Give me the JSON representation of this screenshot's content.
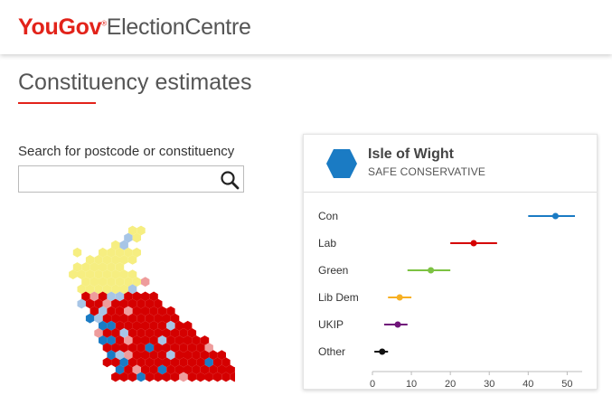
{
  "header": {
    "logo_brand": "YouGov",
    "logo_reg": "®",
    "logo_suffix": "ElectionCentre"
  },
  "page": {
    "title": "Constituency estimates"
  },
  "search": {
    "label": "Search for postcode or constituency",
    "value": "",
    "placeholder": ""
  },
  "colors": {
    "brand_red": "#e2231a",
    "con": "#1a7bc4",
    "lab": "#d50000",
    "green": "#7cc242",
    "libdem": "#f7b023",
    "ukip": "#70147a",
    "other": "#111111",
    "map_yellow": "#f6ee81",
    "map_light_blue": "#a7c5e6",
    "map_pink": "#ee9c9c",
    "map_grey": "#cccccc"
  },
  "constituency": {
    "name": "Isle of Wight",
    "status": "SAFE CONSERVATIVE",
    "party_color": "#1a7bc4"
  },
  "chart_data": {
    "type": "scatter",
    "title": "",
    "xlabel": "",
    "ylabel": "",
    "xlim": [
      0,
      52
    ],
    "xticks": [
      0,
      10,
      20,
      30,
      40,
      50
    ],
    "categories": [
      "Con",
      "Lab",
      "Green",
      "Lib Dem",
      "UKIP",
      "Other"
    ],
    "series": [
      {
        "name": "Con",
        "estimate": 47,
        "low": 40,
        "high": 52,
        "color": "#1a7bc4"
      },
      {
        "name": "Lab",
        "estimate": 26,
        "low": 20,
        "high": 32,
        "color": "#d50000"
      },
      {
        "name": "Green",
        "estimate": 15,
        "low": 9,
        "high": 20,
        "color": "#7cc242"
      },
      {
        "name": "Lib Dem",
        "estimate": 7,
        "low": 4,
        "high": 10,
        "color": "#f7b023"
      },
      {
        "name": "UKIP",
        "estimate": 6.5,
        "low": 3,
        "high": 9,
        "color": "#70147a"
      },
      {
        "name": "Other",
        "estimate": 2.5,
        "low": 0.5,
        "high": 4,
        "color": "#111111"
      }
    ]
  }
}
